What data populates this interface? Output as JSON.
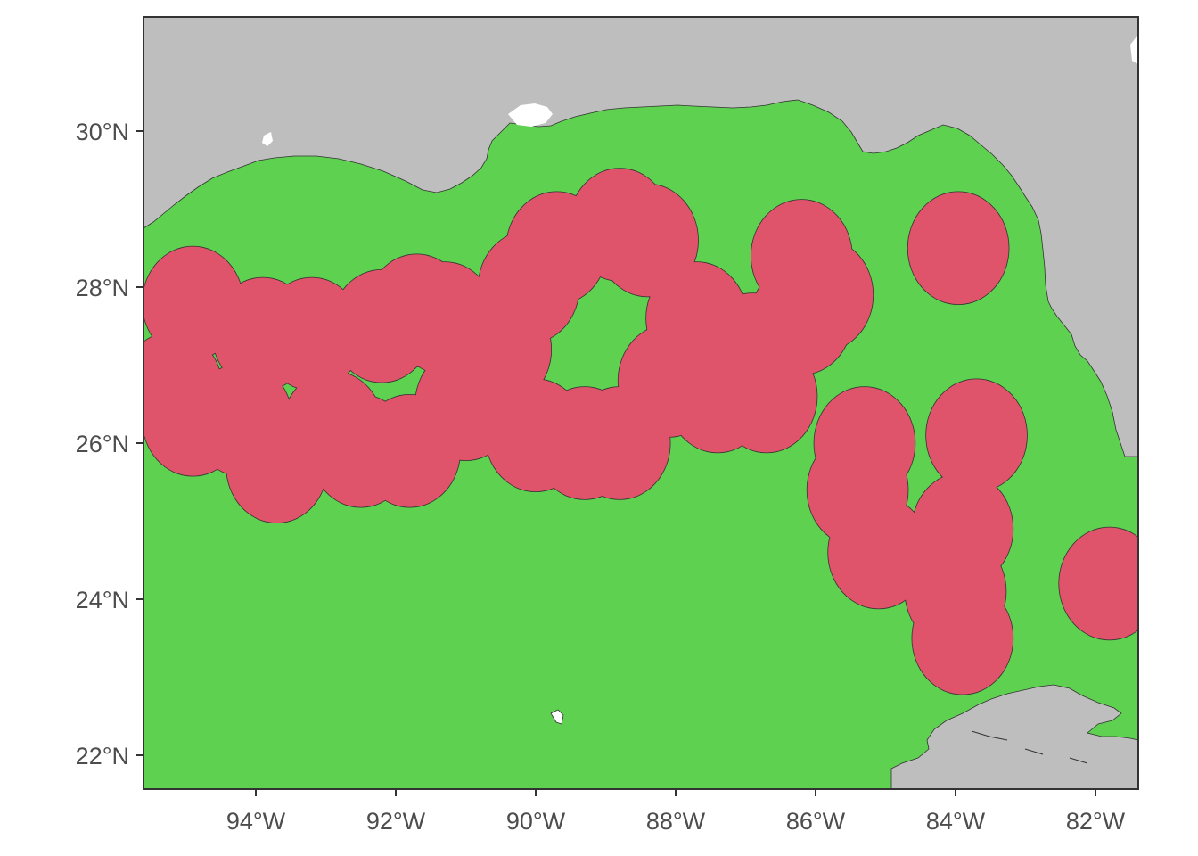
{
  "map": {
    "colors": {
      "land": "#bebebe",
      "water": "#5fd150",
      "zones": "#df536b",
      "outline": "#333333",
      "tick_text": "#4d4d4d",
      "background": "#ffffff"
    },
    "extent": {
      "lon": [
        -95.6,
        -81.3
      ],
      "lat": [
        21.6,
        31.4
      ]
    },
    "y_ticks": [
      "30°N",
      "28°N",
      "26°N",
      "24°N",
      "22°N"
    ],
    "x_ticks": [
      "94°W",
      "92°W",
      "90°W",
      "88°W",
      "86°W",
      "84°W",
      "82°W"
    ],
    "zones": [
      {
        "lon": -94.9,
        "lat": 27.8,
        "r_deg": 0.72
      },
      {
        "lon": -95.2,
        "lat": 26.7,
        "r_deg": 0.72
      },
      {
        "lon": -94.9,
        "lat": 26.3,
        "r_deg": 0.72
      },
      {
        "lon": -94.2,
        "lat": 26.3,
        "r_deg": 0.72
      },
      {
        "lon": -93.9,
        "lat": 27.4,
        "r_deg": 0.72
      },
      {
        "lon": -93.7,
        "lat": 25.7,
        "r_deg": 0.72
      },
      {
        "lon": -93.2,
        "lat": 27.4,
        "r_deg": 0.72
      },
      {
        "lon": -92.9,
        "lat": 26.2,
        "r_deg": 0.72
      },
      {
        "lon": -92.5,
        "lat": 25.9,
        "r_deg": 0.72
      },
      {
        "lon": -92.2,
        "lat": 27.5,
        "r_deg": 0.72
      },
      {
        "lon": -91.8,
        "lat": 25.9,
        "r_deg": 0.72
      },
      {
        "lon": -91.7,
        "lat": 27.7,
        "r_deg": 0.72
      },
      {
        "lon": -91.3,
        "lat": 27.6,
        "r_deg": 0.72
      },
      {
        "lon": -91.0,
        "lat": 26.5,
        "r_deg": 0.72
      },
      {
        "lon": -90.5,
        "lat": 27.2,
        "r_deg": 0.72
      },
      {
        "lon": -90.1,
        "lat": 28.0,
        "r_deg": 0.72
      },
      {
        "lon": -90.0,
        "lat": 26.1,
        "r_deg": 0.72
      },
      {
        "lon": -89.7,
        "lat": 28.5,
        "r_deg": 0.72
      },
      {
        "lon": -89.3,
        "lat": 26.0,
        "r_deg": 0.72
      },
      {
        "lon": -88.8,
        "lat": 28.8,
        "r_deg": 0.72
      },
      {
        "lon": -88.8,
        "lat": 26.0,
        "r_deg": 0.72
      },
      {
        "lon": -88.4,
        "lat": 28.6,
        "r_deg": 0.72
      },
      {
        "lon": -88.1,
        "lat": 26.8,
        "r_deg": 0.72
      },
      {
        "lon": -87.7,
        "lat": 27.6,
        "r_deg": 0.72
      },
      {
        "lon": -87.4,
        "lat": 26.6,
        "r_deg": 0.72
      },
      {
        "lon": -86.9,
        "lat": 27.2,
        "r_deg": 0.72
      },
      {
        "lon": -86.7,
        "lat": 26.6,
        "r_deg": 0.72
      },
      {
        "lon": -86.2,
        "lat": 28.4,
        "r_deg": 0.72
      },
      {
        "lon": -86.2,
        "lat": 27.6,
        "r_deg": 0.72
      },
      {
        "lon": -85.9,
        "lat": 27.9,
        "r_deg": 0.72
      },
      {
        "lon": -83.96,
        "lat": 28.5,
        "r_deg": 0.72
      },
      {
        "lon": -85.3,
        "lat": 26.0,
        "r_deg": 0.72
      },
      {
        "lon": -85.4,
        "lat": 25.4,
        "r_deg": 0.72
      },
      {
        "lon": -85.1,
        "lat": 24.6,
        "r_deg": 0.72
      },
      {
        "lon": -83.7,
        "lat": 26.1,
        "r_deg": 0.72
      },
      {
        "lon": -83.9,
        "lat": 24.9,
        "r_deg": 0.72
      },
      {
        "lon": -84.0,
        "lat": 24.1,
        "r_deg": 0.72
      },
      {
        "lon": -83.9,
        "lat": 23.5,
        "r_deg": 0.72
      },
      {
        "lon": -81.8,
        "lat": 24.2,
        "r_deg": 0.72
      }
    ]
  }
}
